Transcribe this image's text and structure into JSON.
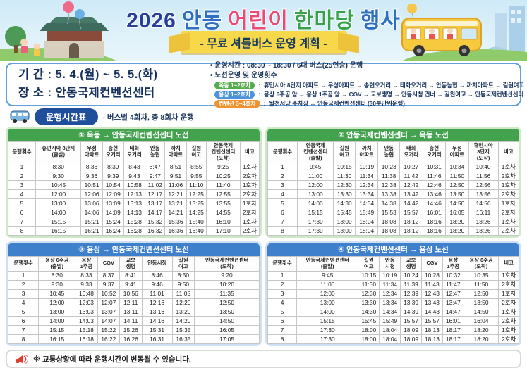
{
  "header": {
    "title_words": [
      {
        "text": "2026",
        "color": "#28409a"
      },
      {
        "text": "안동",
        "color": "#2e6fc0"
      },
      {
        "text": "어린이",
        "color": "#ea4b76"
      },
      {
        "text": "한마당",
        "color": "#38a14b"
      },
      {
        "text": "행사",
        "color": "#2e6fc0"
      }
    ],
    "ribbon": "- 무료 셔틀버스 운영 계획 -"
  },
  "info": {
    "period": "기 간 : 5. 4.(월) ~ 5. 5.(화)",
    "venue": "장 소 : 안동국제컨벤션센터",
    "operation_time": "운영시간 : 08:30 ~ 18:30 / 6대 버스(25인승) 운행",
    "route_heading": "노선운영 및 운영횟수",
    "routes": [
      {
        "badge": "옥동 1~2호차",
        "badge_color": "#56ab4f",
        "text": "휴먼시아 8단지 아파트 → 우성아파트 → 송현오거리 → 태화오거리 → 안동농협 → 까치아파트 → 길원여고 → 안동국제컨벤션센터"
      },
      {
        "badge": "용상 1~2호차",
        "badge_color": "#4d93da",
        "text": "용상 6주공 앞 → 용상 1주공 앞 → CGV → 교보생명 → 안동시청 건너 → 길원여고 → 안동국제컨벤션센터"
      },
      {
        "badge": "컨벤션 3~4호차",
        "badge_color": "#f0922e",
        "text": "월천서당 주차장 ↔ 안동국제컨벤션센터 (30분단위운행)"
      }
    ]
  },
  "timetable_heading": {
    "pill": "운행시간표",
    "note": "- 버스별 4회차, 총 8회차 운행"
  },
  "tables": [
    {
      "theme": "green",
      "title": "① 옥동 → 안동국제컨벤션센터 노선",
      "columns": [
        "운행횟수",
        "휴먼시아 8단지\n(출발)",
        "우성\n아파트",
        "송현\n오거리",
        "태화\n오거리",
        "안동\n농협",
        "까치\n아파트",
        "길원\n여고",
        "안동국제\n컨벤션센터\n(도착)",
        "비고"
      ],
      "rows": [
        [
          "1",
          "8:30",
          "8:36",
          "8:39",
          "8:43",
          "8:47",
          "8:51",
          "8:55",
          "9:25",
          "1호차"
        ],
        [
          "2",
          "9:30",
          "9:36",
          "9:39",
          "9:43",
          "9:47",
          "9:51",
          "9:55",
          "10:25",
          "2호차"
        ],
        [
          "3",
          "10:45",
          "10:51",
          "10:54",
          "10:58",
          "11:02",
          "11:06",
          "11:10",
          "11:40",
          "1호차"
        ],
        [
          "4",
          "12:00",
          "12:06",
          "12:09",
          "12:13",
          "12:17",
          "12:21",
          "12:25",
          "12:55",
          "2호차"
        ],
        [
          "5",
          "13:00",
          "13:06",
          "13:09",
          "13:13",
          "13:17",
          "13:21",
          "13:25",
          "13:55",
          "1호차"
        ],
        [
          "6",
          "14:00",
          "14:06",
          "14:09",
          "14:13",
          "14:17",
          "14:21",
          "14:25",
          "14:55",
          "2호차"
        ],
        [
          "7",
          "15:15",
          "15:21",
          "15:24",
          "15:28",
          "15:32",
          "15:36",
          "15:40",
          "16:10",
          "1호차"
        ],
        [
          "8",
          "16:15",
          "16:21",
          "16:24",
          "16:28",
          "16:32",
          "16:36",
          "16:40",
          "17:10",
          "2호차"
        ]
      ]
    },
    {
      "theme": "green",
      "title": "② 안동국제컨벤션센터 → 옥동 노선",
      "columns": [
        "운행횟수",
        "안동국제\n컨벤션센터\n(출발)",
        "길원\n여고",
        "까치\n아파트",
        "안동\n농협",
        "태화\n오거리",
        "송현\n오거리",
        "우성\n아파트",
        "휴먼시아\n8단지\n(도착)",
        "비고"
      ],
      "rows": [
        [
          "1",
          "9:45",
          "10:15",
          "10:19",
          "10:23",
          "10:27",
          "10:31",
          "10:34",
          "10:40",
          "1호차"
        ],
        [
          "2",
          "11:00",
          "11:30",
          "11:34",
          "11:38",
          "11:42",
          "11:46",
          "11:50",
          "11:56",
          "2호차"
        ],
        [
          "3",
          "12:00",
          "12:30",
          "12:34",
          "12:38",
          "12:42",
          "12:46",
          "12:50",
          "12:56",
          "1호차"
        ],
        [
          "4",
          "13:00",
          "13:30",
          "13:34",
          "13:38",
          "13:42",
          "13:46",
          "13:50",
          "13:56",
          "2호차"
        ],
        [
          "5",
          "14:00",
          "14:30",
          "14:34",
          "14:38",
          "14:42",
          "14:46",
          "14:50",
          "14:56",
          "1호차"
        ],
        [
          "6",
          "15:15",
          "15:45",
          "15:49",
          "15:53",
          "15:57",
          "16:01",
          "16:05",
          "16:11",
          "2호차"
        ],
        [
          "7",
          "17:30",
          "18:00",
          "18:04",
          "18:08",
          "18:12",
          "18:16",
          "18:20",
          "18:26",
          "1호차"
        ],
        [
          "8",
          "17:30",
          "18:00",
          "18:04",
          "18:08",
          "18:12",
          "18:16",
          "18:20",
          "18:26",
          "2호차"
        ]
      ]
    },
    {
      "theme": "blue",
      "title": "③ 용상 → 안동국제컨벤션센터 노선",
      "columns": [
        "운행횟수",
        "용상 6주공\n(출발)",
        "용상\n1주공",
        "CGV",
        "교보\n생명",
        "안동시청",
        "길원\n여고",
        "안동국제컨벤션센터\n(도착)"
      ],
      "rows": [
        [
          "1",
          "8:30",
          "8:33",
          "8:37",
          "8:41",
          "8:46",
          "8:50",
          "9:20"
        ],
        [
          "2",
          "9:30",
          "9:33",
          "9:37",
          "9:41",
          "9:46",
          "9:50",
          "10:20"
        ],
        [
          "3",
          "10:45",
          "10:48",
          "10:52",
          "10:56",
          "11:01",
          "11:05",
          "11:35"
        ],
        [
          "4",
          "12:00",
          "12:03",
          "12:07",
          "12:11",
          "12:16",
          "12:20",
          "12:50"
        ],
        [
          "5",
          "13:00",
          "13:03",
          "13:07",
          "13:11",
          "13:16",
          "13:20",
          "13:50"
        ],
        [
          "6",
          "14:00",
          "14:03",
          "14:07",
          "14:11",
          "14:16",
          "14:20",
          "14:50"
        ],
        [
          "7",
          "15:15",
          "15:18",
          "15:22",
          "15:26",
          "15:31",
          "15:35",
          "16:05"
        ],
        [
          "8",
          "16:15",
          "16:18",
          "16:22",
          "16:26",
          "16:31",
          "16:35",
          "17:05"
        ]
      ]
    },
    {
      "theme": "blue",
      "title": "④ 안동국제컨벤션센터 → 용상 노선",
      "columns": [
        "운행횟수",
        "안동국제컨벤션센터\n(출발)",
        "길원\n여고",
        "안동\n시청",
        "교보\n생명",
        "CGV",
        "용상\n1주공",
        "용상 6주공\n(도착)",
        "비고"
      ],
      "rows": [
        [
          "1",
          "9:45",
          "10:15",
          "10:19",
          "10:24",
          "10:28",
          "10:32",
          "10:35",
          "1호차"
        ],
        [
          "2",
          "11:00",
          "11:30",
          "11:34",
          "11:39",
          "11:43",
          "11:47",
          "11:50",
          "2호차"
        ],
        [
          "3",
          "12:00",
          "12:30",
          "12:34",
          "12:39",
          "12:43",
          "12:47",
          "12:50",
          "1호차"
        ],
        [
          "4",
          "13:00",
          "13:30",
          "13:34",
          "13:39",
          "13:43",
          "13:47",
          "13:50",
          "2호차"
        ],
        [
          "5",
          "14:00",
          "14:30",
          "14:34",
          "14:39",
          "14:43",
          "14:47",
          "14:50",
          "1호차"
        ],
        [
          "6",
          "15:15",
          "15:45",
          "15:49",
          "15:57",
          "15:57",
          "16:01",
          "16:04",
          "2호차"
        ],
        [
          "7",
          "17:30",
          "18:00",
          "18:04",
          "18:09",
          "18:13",
          "18:17",
          "18:20",
          "1호차"
        ],
        [
          "8",
          "17:30",
          "18:00",
          "18:04",
          "18:09",
          "18:13",
          "18:17",
          "18:20",
          "2호차"
        ]
      ]
    }
  ],
  "footer": {
    "note": "※ 교통상황에 따라 운행시간이 변동될 수 있습니다."
  },
  "colors": {
    "green_header": "#43a24e",
    "blue_header": "#3f80cd",
    "green_panel": "#cfe8c6",
    "blue_panel": "#cfe0f5",
    "navy_text": "#16325c",
    "ribbon_yellow": "#f8d84b",
    "pill_navy": "#1e4e9c",
    "megaphone_red": "#e23b2e",
    "bus_yellow": "#f6c93e"
  },
  "icons": {
    "bus-icon": "🚌",
    "megaphone-icon": "📢",
    "balloons-icon": "🎈"
  }
}
